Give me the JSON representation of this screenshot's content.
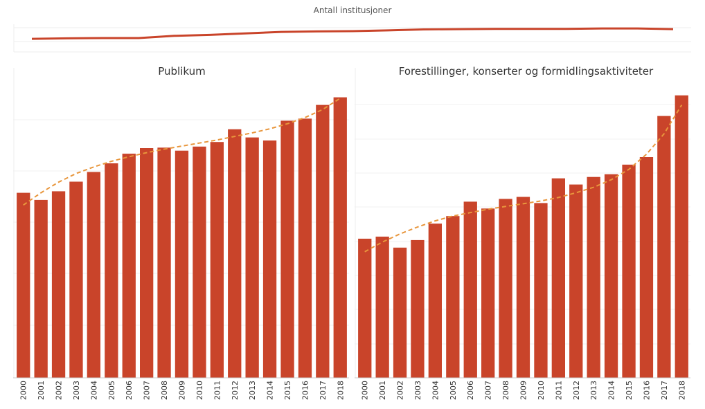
{
  "chart_data": [
    {
      "type": "line",
      "title": "Antall institusjoner",
      "x": [
        "2000",
        "2001",
        "2002",
        "2003",
        "2004",
        "2005",
        "2006",
        "2007",
        "2008",
        "2009",
        "2010",
        "2011",
        "2012",
        "2013",
        "2014",
        "2015",
        "2016",
        "2017",
        "2018"
      ],
      "values": [
        86.5,
        87.5,
        88,
        88,
        92.5,
        94.5,
        97.5,
        100.5,
        101.5,
        102,
        103.5,
        105.5,
        106,
        106.5,
        106.5,
        106.5,
        107.5,
        107.5,
        106
      ],
      "ylim": [
        60,
        130
      ],
      "grid": true,
      "color": "#C9442A"
    },
    {
      "type": "bar",
      "title": "Publikum",
      "categories": [
        "2000",
        "2001",
        "2002",
        "2003",
        "2004",
        "2005",
        "2006",
        "2007",
        "2008",
        "2009",
        "2010",
        "2011",
        "2012",
        "2013",
        "2014",
        "2015",
        "2016",
        "2017",
        "2018"
      ],
      "values": [
        3.64,
        3.5,
        3.67,
        3.86,
        4.05,
        4.22,
        4.41,
        4.52,
        4.53,
        4.47,
        4.55,
        4.64,
        4.89,
        4.73,
        4.67,
        5.06,
        5.1,
        5.37,
        5.52
      ],
      "trend": [
        3.4,
        3.64,
        3.85,
        4.02,
        4.15,
        4.26,
        4.35,
        4.43,
        4.5,
        4.56,
        4.62,
        4.68,
        4.75,
        4.82,
        4.9,
        5.0,
        5.12,
        5.28,
        5.5
      ],
      "ylim": [
        0,
        5.8
      ],
      "grid": true,
      "color": "#C9442A",
      "trend_color": "#E8963C"
    },
    {
      "type": "bar",
      "title": "Forestillinger, konserter og formidlingsaktiviteter",
      "categories": [
        "2000",
        "2001",
        "2002",
        "2003",
        "2004",
        "2005",
        "2006",
        "2007",
        "2008",
        "2009",
        "2010",
        "2011",
        "2012",
        "2013",
        "2014",
        "2015",
        "2016",
        "2017",
        "2018"
      ],
      "values": [
        2.03,
        2.06,
        1.9,
        2.01,
        2.25,
        2.36,
        2.57,
        2.47,
        2.61,
        2.64,
        2.55,
        2.91,
        2.82,
        2.93,
        2.97,
        3.11,
        3.22,
        3.82,
        4.12
      ],
      "trend": [
        1.84,
        1.98,
        2.1,
        2.2,
        2.29,
        2.36,
        2.41,
        2.46,
        2.5,
        2.54,
        2.58,
        2.63,
        2.7,
        2.78,
        2.89,
        3.04,
        3.26,
        3.56,
        3.98
      ],
      "ylim": [
        0,
        4.3
      ],
      "grid": true,
      "color": "#C9442A",
      "trend_color": "#E8963C"
    }
  ]
}
